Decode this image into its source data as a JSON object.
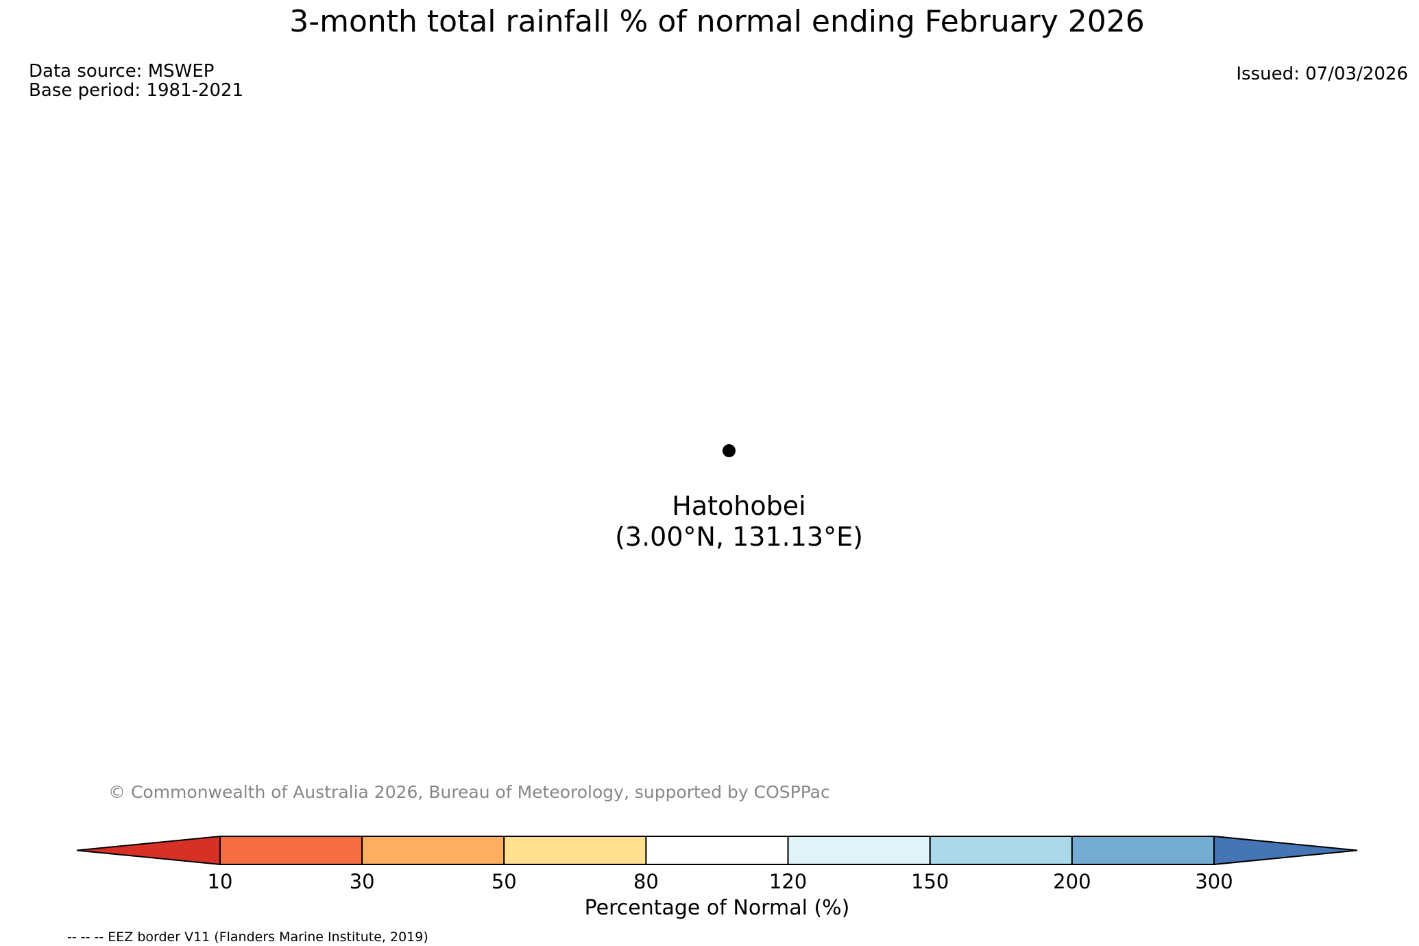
{
  "page": {
    "title": "3-month total rainfall % of normal ending February 2026",
    "data_source": "Data source: MSWEP",
    "base_period": "Base period: 1981-2021",
    "issued": "Issued: 07/03/2026",
    "copyright": "© Commonwealth of Australia 2026, Bureau of Meteorology, supported by COSPPac",
    "eez_note": "-- -- -- EEZ border V11 (Flanders Marine Institute, 2019)"
  },
  "station": {
    "name": "Hatohobei",
    "coordinates": "(3.00°N, 131.13°E)",
    "marker": "black-dot"
  },
  "chart_data": {
    "type": "map-colorbar",
    "title": "3-month total rainfall % of normal ending February 2026",
    "axis_label": "Percentage of Normal (%)",
    "boundaries": [
      "10",
      "30",
      "50",
      "80",
      "120",
      "150",
      "200",
      "300"
    ],
    "segment_colors": [
      "#f46d43",
      "#fdae61",
      "#fee090",
      "#ffffff",
      "#e0f3f8",
      "#abd9e9",
      "#74add1"
    ],
    "extend_under_color": "#d73027",
    "extend_over_color": "#4575b4",
    "outline_color": "#000000",
    "legend_position": "bottom",
    "stations": [
      {
        "name": "Hatohobei",
        "lat": "3.00°N",
        "lon": "131.13°E",
        "marker_color": "#000000"
      }
    ]
  }
}
